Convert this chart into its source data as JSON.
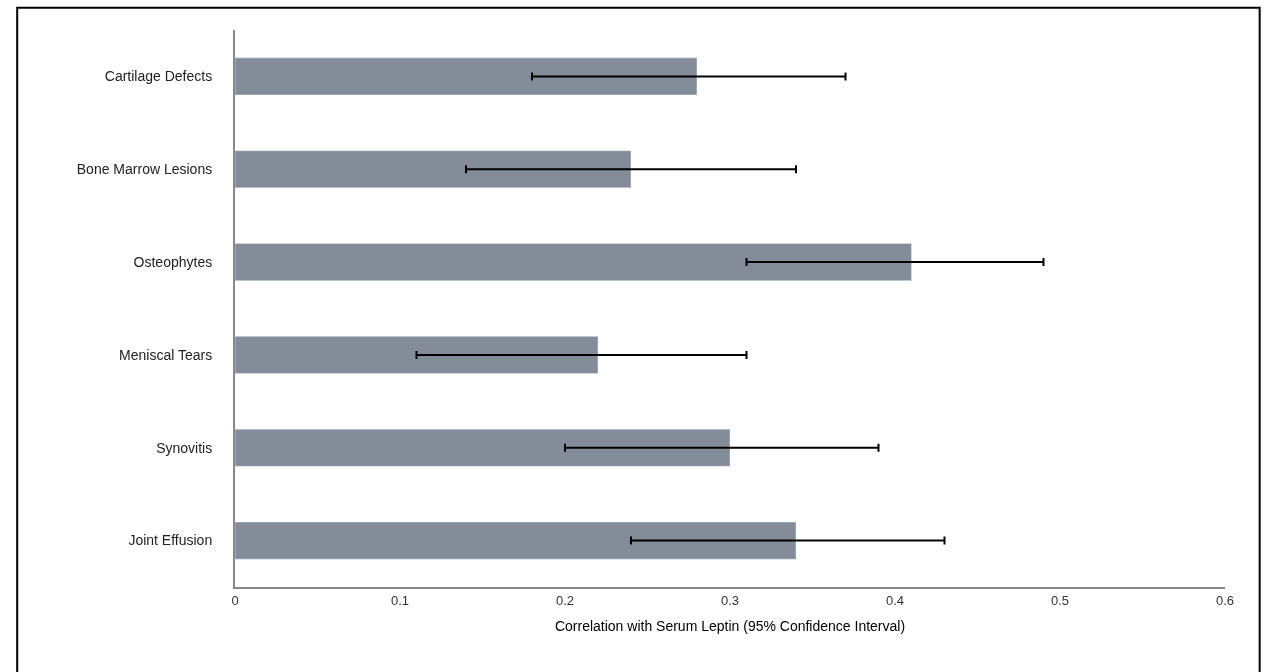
{
  "chart_data": {
    "type": "bar",
    "orientation": "horizontal",
    "xlabel": "Correlation with Serum Leptin (95% Confidence Interval)",
    "categories": [
      "Cartilage Defects",
      "Bone Marrow Lesions",
      "Osteophytes",
      "Meniscal Tears",
      "Synovitis",
      "Joint Effusion"
    ],
    "values": [
      0.28,
      0.24,
      0.41,
      0.22,
      0.3,
      0.34
    ],
    "errors": [
      [
        0.18,
        0.37
      ],
      [
        0.14,
        0.34
      ],
      [
        0.31,
        0.49
      ],
      [
        0.11,
        0.31
      ],
      [
        0.2,
        0.39
      ],
      [
        0.24,
        0.43
      ]
    ],
    "color": "#848c9a",
    "xlim": [
      0,
      0.6
    ],
    "xticks": [
      0,
      0.1,
      0.2,
      0.3,
      0.4,
      0.5,
      0.6
    ]
  }
}
